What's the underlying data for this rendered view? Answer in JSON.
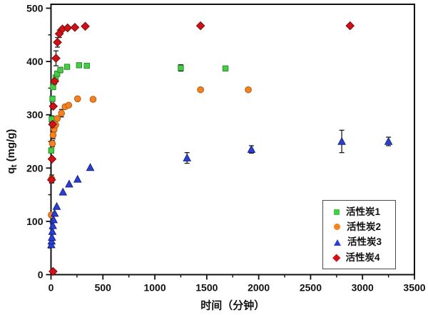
{
  "chart_data": {
    "type": "scatter",
    "title": "",
    "xlabel": "时间（分钟）",
    "ylabel_base": "q",
    "ylabel_sub": "t",
    "ylabel_rest": " (mg/g)",
    "xlim": [
      0,
      3500
    ],
    "ylim": [
      0,
      500
    ],
    "x_major_ticks": [
      0,
      500,
      1000,
      1500,
      2000,
      2500,
      3000,
      3500
    ],
    "x_minor_step": 250,
    "y_major_ticks": [
      0,
      100,
      200,
      300,
      400,
      500
    ],
    "y_minor_step": 50,
    "grid": false,
    "legend_position": "inside-right",
    "axis_color": "#111111",
    "error_bar_color": "#1a1a1a",
    "series": [
      {
        "name": "活性炭1",
        "marker": "square",
        "color": "#45CE45",
        "edge": "#2E8B2E",
        "points": [
          [
            2,
            233,
            0
          ],
          [
            7,
            292,
            6
          ],
          [
            14,
            330,
            5
          ],
          [
            20,
            352,
            4
          ],
          [
            30,
            362,
            4
          ],
          [
            45,
            370,
            4
          ],
          [
            60,
            377,
            5
          ],
          [
            90,
            384,
            5
          ],
          [
            155,
            390,
            4
          ],
          [
            270,
            393,
            3
          ],
          [
            345,
            392,
            0
          ],
          [
            1250,
            388,
            6
          ],
          [
            1680,
            387,
            0
          ]
        ]
      },
      {
        "name": "活性炭2",
        "marker": "circle",
        "color": "#F5821F",
        "edge": "#B35A10",
        "points": [
          [
            3,
            112,
            0
          ],
          [
            7,
            180,
            7
          ],
          [
            13,
            246,
            6
          ],
          [
            20,
            262,
            7
          ],
          [
            30,
            273,
            5
          ],
          [
            45,
            281,
            0
          ],
          [
            60,
            293,
            0
          ],
          [
            101,
            303,
            7
          ],
          [
            135,
            315,
            0
          ],
          [
            170,
            318,
            0
          ],
          [
            256,
            330,
            0
          ],
          [
            405,
            329,
            0
          ],
          [
            1440,
            347,
            0
          ],
          [
            1900,
            347,
            0
          ]
        ]
      },
      {
        "name": "活性炭3",
        "marker": "triangle",
        "color": "#2B3FD6",
        "edge": "#16227E",
        "points": [
          [
            3,
            56,
            0
          ],
          [
            6,
            63,
            0
          ],
          [
            9,
            70,
            0
          ],
          [
            13,
            81,
            0
          ],
          [
            18,
            92,
            0
          ],
          [
            25,
            103,
            0
          ],
          [
            35,
            115,
            0
          ],
          [
            55,
            128,
            0
          ],
          [
            115,
            155,
            0
          ],
          [
            175,
            170,
            0
          ],
          [
            256,
            179,
            0
          ],
          [
            378,
            201,
            0
          ],
          [
            1310,
            219,
            10
          ],
          [
            1930,
            235,
            7
          ],
          [
            2800,
            250,
            21
          ],
          [
            3250,
            250,
            8
          ]
        ]
      },
      {
        "name": "活性炭4",
        "marker": "diamond",
        "color": "#D01217",
        "edge": "#7A0A0D",
        "points": [
          [
            20,
            6,
            0
          ],
          [
            5,
            178,
            6
          ],
          [
            10,
            217,
            0
          ],
          [
            15,
            282,
            0
          ],
          [
            22,
            316,
            0
          ],
          [
            35,
            363,
            0
          ],
          [
            48,
            406,
            14
          ],
          [
            62,
            436,
            9
          ],
          [
            80,
            452,
            7
          ],
          [
            110,
            461,
            0
          ],
          [
            160,
            463,
            0
          ],
          [
            230,
            464,
            0
          ],
          [
            330,
            466,
            0
          ],
          [
            1440,
            467,
            0
          ],
          [
            2880,
            467,
            0
          ]
        ]
      }
    ]
  }
}
